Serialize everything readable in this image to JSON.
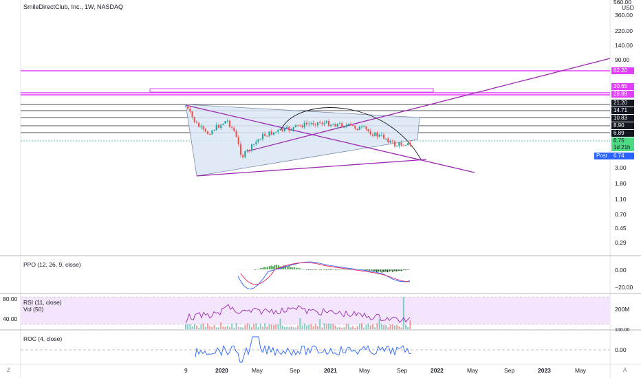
{
  "header": {
    "title": "SmileDirectClub, Inc., 1W, NASDAQ"
  },
  "price_axis": {
    "currency": "USD",
    "ticks": [
      "560.00",
      "360.00",
      "220.00",
      "140.00",
      "90.00",
      "3.00",
      "1.80",
      "1.10",
      "0.70",
      "0.45",
      "0.29"
    ]
  },
  "price_tags": [
    {
      "label": "62.20",
      "color": "#e040fb"
    },
    {
      "label": "30.65",
      "color": "#e040fb"
    },
    {
      "label": "28.88",
      "color": "#e040fb"
    },
    {
      "label": "21.20",
      "color": "#131722"
    },
    {
      "label": "14.71",
      "color": "#131722"
    },
    {
      "label": "10.83",
      "color": "#131722"
    },
    {
      "label": "8.90",
      "color": "#131722"
    },
    {
      "label": "6.89",
      "color": "#131722"
    }
  ],
  "last_price": {
    "label": "6.75",
    "countdown": "1d 21h",
    "color": "#4cd982"
  },
  "post_market": {
    "label": "Post",
    "value": "6.74"
  },
  "indicators": {
    "ppo": {
      "title": "PPO (12, 26, 9, close)",
      "ticks": [
        "0.00",
        "−20.00"
      ]
    },
    "rsi": {
      "title": "RSI (11, close)",
      "left_ticks": [
        "80.00",
        "40.00"
      ]
    },
    "vol": {
      "title": "Vol (50)",
      "ticks": [
        "200M",
        "100.00"
      ]
    },
    "roc": {
      "title": "ROC (4, close)",
      "ticks": [
        "0.00"
      ]
    }
  },
  "time_axis": {
    "labels": [
      "9",
      "2020",
      "May",
      "Sep",
      "2021",
      "May",
      "Sep",
      "2022",
      "May",
      "Sep",
      "2023",
      "May"
    ]
  },
  "corner_left": "Z",
  "corner_right": "A",
  "colors": {
    "magenta": "#e040fb",
    "purple": "#9c27b0",
    "triangle_fill": "#dbe5f5",
    "rsi_band": "#f3e5fb"
  }
}
